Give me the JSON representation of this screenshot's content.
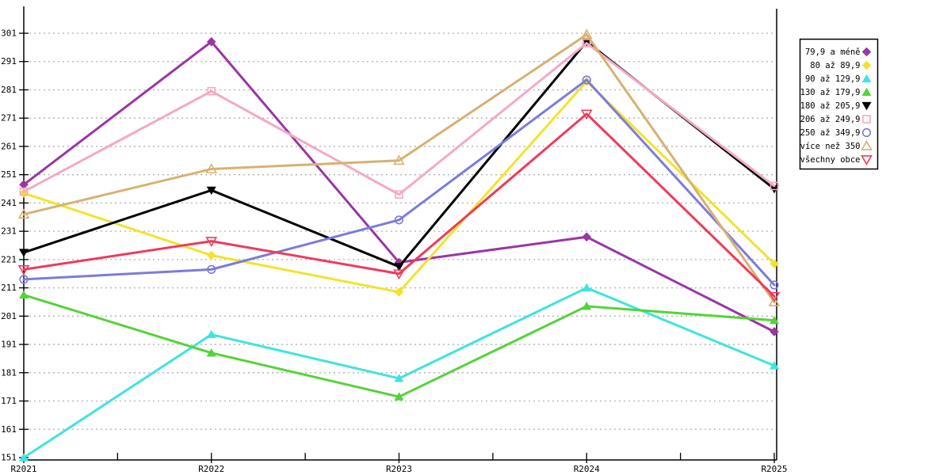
{
  "chart_data": {
    "type": "line",
    "title": "",
    "xlabel": "",
    "ylabel": "",
    "categories": [
      "R2021",
      "R2022",
      "R2023",
      "R2024",
      "R2025"
    ],
    "ylim": [
      151,
      301
    ],
    "ytick_step": 10,
    "ytick_labels": [
      "151",
      "161",
      "171",
      "181",
      "191",
      "201",
      "211",
      "221",
      "231",
      "241",
      "251",
      "261",
      "271",
      "281",
      "291",
      "301"
    ],
    "grid": "horizontal-dotted",
    "gridline_color": "#b0b0b0",
    "axis_color": "#000000",
    "legend_position": "outside-top-right",
    "series": [
      {
        "name": "79,9 a méně",
        "color": "#9a35a5",
        "marker": "diamond",
        "filled": true,
        "values": [
          247.5,
          298,
          220,
          229,
          195.5
        ]
      },
      {
        "name": "80 až 89,9",
        "color": "#f2e32c",
        "marker": "diamond",
        "filled": true,
        "values": [
          244.5,
          222.5,
          209.5,
          284,
          219.5
        ]
      },
      {
        "name": "90 až 129,9",
        "color": "#3fe4de",
        "marker": "triangle-up",
        "filled": true,
        "values": [
          151,
          194.5,
          179,
          211,
          183.5
        ]
      },
      {
        "name": "130 až 179,9",
        "color": "#54d338",
        "marker": "triangle-up",
        "filled": true,
        "values": [
          208.5,
          188,
          172.5,
          204.5,
          199.5
        ]
      },
      {
        "name": "180 až 205,9",
        "color": "#000000",
        "marker": "triangle-down",
        "filled": true,
        "values": [
          223.5,
          245.5,
          218.5,
          298,
          246
        ]
      },
      {
        "name": "206 až 249,9",
        "color": "#f4a9c4",
        "marker": "square",
        "filled": false,
        "values": [
          245,
          280.5,
          244,
          297.5,
          247
        ]
      },
      {
        "name": "250 až 349,9",
        "color": "#7b7bde",
        "marker": "circle",
        "filled": false,
        "values": [
          214,
          217.5,
          235,
          284.5,
          212
        ]
      },
      {
        "name": "více než 350",
        "color": "#d7b172",
        "marker": "triangle-up",
        "filled": false,
        "values": [
          237,
          253,
          256,
          300.5,
          206
        ]
      },
      {
        "name": "všechny obce",
        "color": "#f03a5b",
        "marker": "triangle-down",
        "filled": false,
        "values": [
          217.5,
          227.5,
          216,
          272.5,
          208
        ]
      }
    ]
  }
}
